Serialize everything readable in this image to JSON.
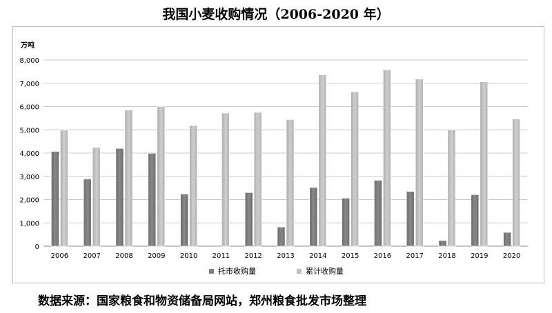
{
  "title": "我国小麦收购情况（2006-2020 年）",
  "source": "数据来源：国家粮食和物资储备局网站，郑州粮食批发市场整理",
  "chart_data": {
    "type": "bar",
    "title": "我国小麦收购情况（2006-2020 年）",
    "ylabel": "万吨",
    "xlabel": "",
    "ylim": [
      0,
      8000
    ],
    "yticks": [
      "0",
      "1,000",
      "2,000",
      "3,000",
      "4,000",
      "5,000",
      "6,000",
      "7,000",
      "8,000"
    ],
    "categories": [
      "2006",
      "2007",
      "2008",
      "2009",
      "2010",
      "2011",
      "2012",
      "2013",
      "2014",
      "2015",
      "2016",
      "2017",
      "2018",
      "2019",
      "2020"
    ],
    "series": [
      {
        "name": "托市收购量",
        "color": "#7f7f7f",
        "values": [
          4070,
          2880,
          4200,
          3990,
          2240,
          0,
          2300,
          820,
          2520,
          2060,
          2830,
          2350,
          240,
          2210,
          590
        ]
      },
      {
        "name": "累计收购量",
        "color": "#bfbfbf",
        "values": [
          4980,
          4240,
          5850,
          6000,
          5180,
          5720,
          5750,
          5440,
          7360,
          6630,
          7580,
          7180,
          5000,
          7060,
          5460
        ]
      }
    ],
    "grid": true,
    "legend": "bottom"
  }
}
